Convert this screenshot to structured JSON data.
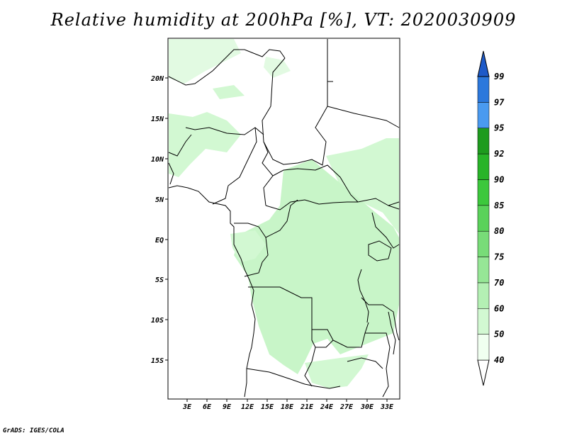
{
  "title": "Relative humidity at 200hPa [%], VT: 2020030909",
  "credit": "GrADS: IGES/COLA",
  "lat_labels": [
    "20N",
    "15N",
    "10N",
    "5N",
    "EQ",
    "5S",
    "10S",
    "15S"
  ],
  "lon_labels": [
    "3E",
    "6E",
    "9E",
    "12E",
    "15E",
    "18E",
    "21E",
    "24E",
    "27E",
    "30E",
    "33E"
  ],
  "colorbar": {
    "labels": [
      "40",
      "50",
      "60",
      "70",
      "75",
      "80",
      "85",
      "90",
      "92",
      "95",
      "97",
      "99"
    ],
    "colors": [
      "#f0fff0",
      "#d2f8d2",
      "#b4f0b4",
      "#96e696",
      "#78dc78",
      "#5ad25a",
      "#3cc83c",
      "#28b428",
      "#1e9b1e",
      "#4a9af0",
      "#2c78dc",
      "#1e5ac8"
    ]
  },
  "colors": {
    "outline": "#000000",
    "humid_low": "#d2f8d2",
    "humid_mid": "#b4f0b4"
  }
}
